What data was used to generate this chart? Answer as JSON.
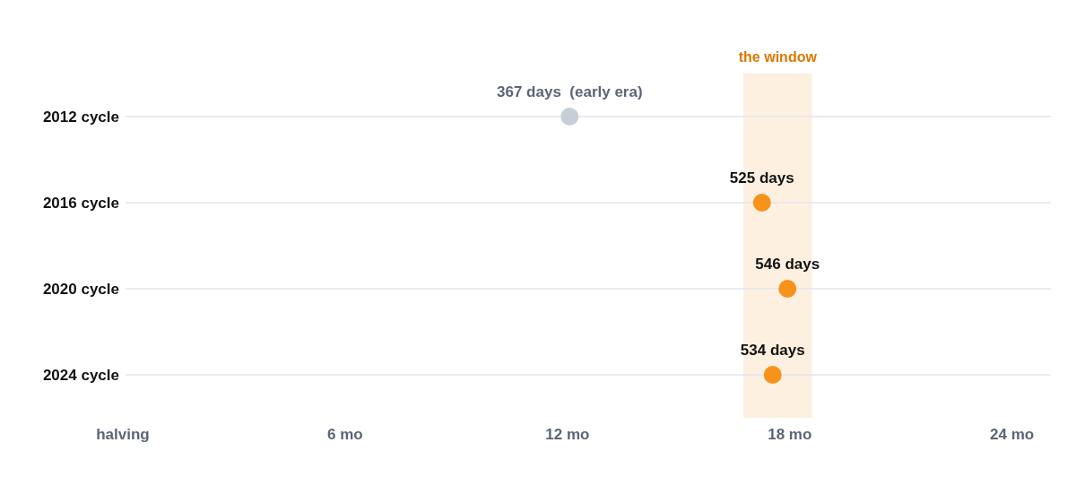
{
  "chart_data": {
    "type": "scatter",
    "orientation": "horizontal",
    "categories": [
      "2012 cycle",
      "2016 cycle",
      "2020 cycle",
      "2024 cycle"
    ],
    "values": [
      12.06,
      17.25,
      17.94,
      17.54
    ],
    "colors": [
      "#c8ced8",
      "#f7931a",
      "#f7931a",
      "#f7931a"
    ],
    "annotations": [
      {
        "text": "367 days  (early era)",
        "x": 12.06,
        "y": "2012 cycle"
      },
      {
        "text": "525 days",
        "x": 17.25,
        "y": "2016 cycle"
      },
      {
        "text": "546 days",
        "x": 17.94,
        "y": "2020 cycle"
      },
      {
        "text": "534 days",
        "x": 17.54,
        "y": "2024 cycle"
      }
    ],
    "xlim": [
      0,
      25
    ],
    "xticks": [
      {
        "value": 0,
        "label": "halving"
      },
      {
        "value": 6,
        "label": "6 mo"
      },
      {
        "value": 12,
        "label": "12 mo"
      },
      {
        "value": 18,
        "label": "18 mo"
      },
      {
        "value": 24,
        "label": "24 mo"
      }
    ],
    "bands": [
      {
        "axis": "x",
        "from": 16.75,
        "to": 18.6,
        "label": "the window",
        "color": "#fdf0e0"
      }
    ],
    "grid": "y",
    "marker": "circle"
  }
}
